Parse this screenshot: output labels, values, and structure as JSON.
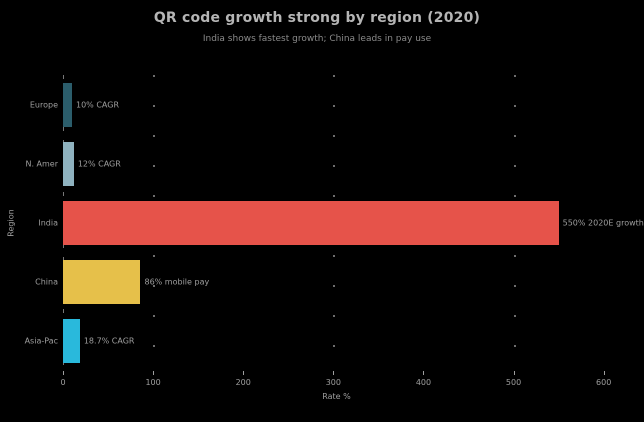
{
  "chart_data": {
    "type": "bar",
    "orientation": "horizontal",
    "title": "QR code growth strong by region (2020)",
    "subtitle": "India shows fastest growth; China leads in pay use",
    "xlabel": "Rate %",
    "ylabel": "Region",
    "categories": [
      "Europe",
      "N. Amer",
      "India",
      "China",
      "Asia-Pac"
    ],
    "values": [
      10,
      12,
      550,
      86,
      18.7
    ],
    "bar_labels": [
      "10% CAGR",
      "12% CAGR",
      "550% 2020E growth",
      "86% mobile pay",
      "18.7% CAGR"
    ],
    "bar_colors": [
      "#2b5d6b",
      "#8fb2bf",
      "#e6534a",
      "#e6c04a",
      "#29b9dc"
    ],
    "xlim": [
      0,
      607
    ],
    "xticks": [
      0,
      100,
      200,
      300,
      400,
      500,
      600
    ],
    "grid_x": [
      100,
      300,
      500
    ],
    "grid_style": "dotted",
    "legend": "none"
  },
  "colors": {
    "background": "#000000",
    "title_text": "#b5b5b5",
    "subtitle_text": "#8a8a8a",
    "axis_text": "#9e9e9e",
    "grid_dot": "#6e6e6e",
    "axis_line": "#777777"
  }
}
